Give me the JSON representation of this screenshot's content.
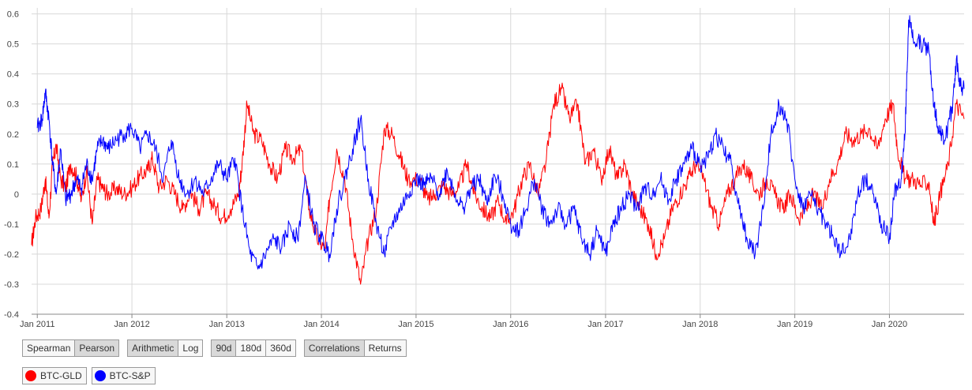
{
  "chart_data": {
    "type": "line",
    "title": "",
    "xlabel": "",
    "ylabel": "",
    "ylim": [
      -0.4,
      0.62
    ],
    "xlim": [
      "2010-12-10",
      "2020-10-15"
    ],
    "grid": true,
    "legend": "bottom-left",
    "y_ticks": [
      "-0.4",
      "-0.3",
      "-0.2",
      "-0.1",
      "0",
      "0.1",
      "0.2",
      "0.3",
      "0.4",
      "0.5",
      "0.6"
    ],
    "x_ticks": [
      "Jan 2011",
      "Jan 2012",
      "Jan 2013",
      "Jan 2014",
      "Jan 2015",
      "Jan 2016",
      "Jan 2017",
      "Jan 2018",
      "Jan 2019",
      "Jan 2020"
    ],
    "series": [
      {
        "name": "BTC-GLD",
        "color": "#ff0000",
        "points": [
          [
            "2010-12-10",
            -0.17
          ],
          [
            "2010-12-25",
            -0.08
          ],
          [
            "2011-01-15",
            -0.05
          ],
          [
            "2011-02-01",
            0.05
          ],
          [
            "2011-02-15",
            -0.08
          ],
          [
            "2011-03-01",
            0.1
          ],
          [
            "2011-03-15",
            0.16
          ],
          [
            "2011-04-01",
            0.05
          ],
          [
            "2011-04-20",
            0.02
          ],
          [
            "2011-05-10",
            0.1
          ],
          [
            "2011-06-01",
            0.06
          ],
          [
            "2011-06-20",
            -0.02
          ],
          [
            "2011-07-10",
            0.08
          ],
          [
            "2011-08-01",
            -0.1
          ],
          [
            "2011-08-20",
            0.05
          ],
          [
            "2011-09-10",
            0.02
          ],
          [
            "2011-10-01",
            0.0
          ],
          [
            "2011-11-01",
            0.02
          ],
          [
            "2011-12-01",
            0.0
          ],
          [
            "2012-01-01",
            0.02
          ],
          [
            "2012-02-01",
            0.06
          ],
          [
            "2012-03-01",
            0.08
          ],
          [
            "2012-03-20",
            0.12
          ],
          [
            "2012-04-15",
            0.02
          ],
          [
            "2012-05-15",
            0.05
          ],
          [
            "2012-06-15",
            0.0
          ],
          [
            "2012-07-15",
            -0.05
          ],
          [
            "2012-08-15",
            0.01
          ],
          [
            "2012-09-15",
            -0.05
          ],
          [
            "2012-10-15",
            0.0
          ],
          [
            "2012-11-15",
            -0.04
          ],
          [
            "2012-12-15",
            -0.08
          ],
          [
            "2013-01-15",
            -0.05
          ],
          [
            "2013-02-15",
            0.0
          ],
          [
            "2013-03-01",
            0.1
          ],
          [
            "2013-03-20",
            0.3
          ],
          [
            "2013-04-15",
            0.2
          ],
          [
            "2013-05-15",
            0.18
          ],
          [
            "2013-06-15",
            0.1
          ],
          [
            "2013-07-15",
            0.05
          ],
          [
            "2013-08-15",
            0.15
          ],
          [
            "2013-09-15",
            0.12
          ],
          [
            "2013-10-15",
            0.15
          ],
          [
            "2013-11-15",
            -0.05
          ],
          [
            "2013-12-15",
            -0.15
          ],
          [
            "2014-01-15",
            -0.18
          ],
          [
            "2014-02-01",
            -0.02
          ],
          [
            "2014-03-01",
            0.15
          ],
          [
            "2014-04-01",
            0.05
          ],
          [
            "2014-05-01",
            -0.15
          ],
          [
            "2014-06-01",
            -0.3
          ],
          [
            "2014-07-01",
            -0.15
          ],
          [
            "2014-08-01",
            -0.05
          ],
          [
            "2014-09-01",
            0.22
          ],
          [
            "2014-10-01",
            0.2
          ],
          [
            "2014-11-01",
            0.12
          ],
          [
            "2014-12-01",
            0.05
          ],
          [
            "2015-01-15",
            0.05
          ],
          [
            "2015-02-15",
            -0.02
          ],
          [
            "2015-03-15",
            0.0
          ],
          [
            "2015-04-15",
            0.03
          ],
          [
            "2015-05-15",
            0.0
          ],
          [
            "2015-06-15",
            0.02
          ],
          [
            "2015-07-15",
            0.1
          ],
          [
            "2015-08-15",
            0.0
          ],
          [
            "2015-09-15",
            -0.05
          ],
          [
            "2015-10-15",
            -0.08
          ],
          [
            "2015-11-15",
            -0.02
          ],
          [
            "2015-12-15",
            -0.1
          ],
          [
            "2016-01-15",
            -0.05
          ],
          [
            "2016-02-15",
            0.05
          ],
          [
            "2016-03-15",
            0.1
          ],
          [
            "2016-04-15",
            0.0
          ],
          [
            "2016-05-15",
            0.1
          ],
          [
            "2016-06-15",
            0.3
          ],
          [
            "2016-07-15",
            0.35
          ],
          [
            "2016-08-15",
            0.25
          ],
          [
            "2016-09-15",
            0.3
          ],
          [
            "2016-10-15",
            0.1
          ],
          [
            "2016-11-15",
            0.15
          ],
          [
            "2016-12-15",
            0.05
          ],
          [
            "2017-01-15",
            0.15
          ],
          [
            "2017-02-15",
            0.05
          ],
          [
            "2017-03-15",
            0.1
          ],
          [
            "2017-04-15",
            0.0
          ],
          [
            "2017-05-15",
            -0.05
          ],
          [
            "2017-06-15",
            -0.1
          ],
          [
            "2017-07-15",
            -0.2
          ],
          [
            "2017-08-15",
            -0.15
          ],
          [
            "2017-09-15",
            -0.05
          ],
          [
            "2017-10-15",
            0.0
          ],
          [
            "2017-11-15",
            0.05
          ],
          [
            "2017-12-15",
            0.1
          ],
          [
            "2018-01-15",
            0.05
          ],
          [
            "2018-02-15",
            -0.05
          ],
          [
            "2018-03-15",
            -0.1
          ],
          [
            "2018-04-15",
            0.0
          ],
          [
            "2018-05-15",
            0.05
          ],
          [
            "2018-06-15",
            0.1
          ],
          [
            "2018-07-15",
            0.05
          ],
          [
            "2018-08-15",
            0.0
          ],
          [
            "2018-09-15",
            0.05
          ],
          [
            "2018-10-15",
            0.0
          ],
          [
            "2018-11-15",
            -0.05
          ],
          [
            "2018-12-15",
            0.0
          ],
          [
            "2019-01-15",
            -0.08
          ],
          [
            "2019-02-15",
            -0.05
          ],
          [
            "2019-03-15",
            0.0
          ],
          [
            "2019-04-15",
            -0.05
          ],
          [
            "2019-05-15",
            0.05
          ],
          [
            "2019-06-15",
            0.1
          ],
          [
            "2019-07-15",
            0.2
          ],
          [
            "2019-08-15",
            0.18
          ],
          [
            "2019-09-15",
            0.2
          ],
          [
            "2019-10-15",
            0.22
          ],
          [
            "2019-11-15",
            0.15
          ],
          [
            "2019-12-15",
            0.25
          ],
          [
            "2020-01-15",
            0.3
          ],
          [
            "2020-02-01",
            0.15
          ],
          [
            "2020-03-01",
            0.05
          ],
          [
            "2020-04-01",
            0.05
          ],
          [
            "2020-05-01",
            0.03
          ],
          [
            "2020-06-01",
            0.04
          ],
          [
            "2020-06-20",
            -0.1
          ],
          [
            "2020-07-15",
            0.0
          ],
          [
            "2020-08-15",
            0.1
          ],
          [
            "2020-09-15",
            0.3
          ],
          [
            "2020-10-15",
            0.25
          ]
        ]
      },
      {
        "name": "BTC-S&P",
        "color": "#0000ff",
        "points": [
          [
            "2011-01-01",
            0.22
          ],
          [
            "2011-01-20",
            0.25
          ],
          [
            "2011-02-01",
            0.34
          ],
          [
            "2011-02-15",
            0.25
          ],
          [
            "2011-03-01",
            0.1
          ],
          [
            "2011-03-15",
            0.0
          ],
          [
            "2011-04-01",
            0.15
          ],
          [
            "2011-04-20",
            -0.02
          ],
          [
            "2011-05-10",
            0.0
          ],
          [
            "2011-06-01",
            0.05
          ],
          [
            "2011-06-20",
            0.02
          ],
          [
            "2011-07-10",
            0.1
          ],
          [
            "2011-08-01",
            0.05
          ],
          [
            "2011-08-20",
            0.15
          ],
          [
            "2011-09-10",
            0.18
          ],
          [
            "2011-10-01",
            0.15
          ],
          [
            "2011-11-01",
            0.18
          ],
          [
            "2011-12-01",
            0.2
          ],
          [
            "2012-01-01",
            0.22
          ],
          [
            "2012-02-01",
            0.15
          ],
          [
            "2012-03-01",
            0.2
          ],
          [
            "2012-04-01",
            0.15
          ],
          [
            "2012-05-01",
            0.05
          ],
          [
            "2012-06-01",
            0.18
          ],
          [
            "2012-07-01",
            0.05
          ],
          [
            "2012-08-01",
            0.0
          ],
          [
            "2012-09-01",
            0.05
          ],
          [
            "2012-10-01",
            0.0
          ],
          [
            "2012-11-01",
            0.05
          ],
          [
            "2012-12-01",
            0.1
          ],
          [
            "2013-01-01",
            0.05
          ],
          [
            "2013-02-01",
            0.12
          ],
          [
            "2013-03-01",
            -0.05
          ],
          [
            "2013-04-01",
            -0.2
          ],
          [
            "2013-05-01",
            -0.25
          ],
          [
            "2013-06-01",
            -0.2
          ],
          [
            "2013-07-01",
            -0.15
          ],
          [
            "2013-08-01",
            -0.18
          ],
          [
            "2013-09-01",
            -0.1
          ],
          [
            "2013-10-01",
            -0.15
          ],
          [
            "2013-11-01",
            0.05
          ],
          [
            "2013-12-01",
            -0.1
          ],
          [
            "2014-01-01",
            -0.15
          ],
          [
            "2014-02-01",
            -0.2
          ],
          [
            "2014-03-01",
            -0.05
          ],
          [
            "2014-04-01",
            0.05
          ],
          [
            "2014-05-01",
            0.15
          ],
          [
            "2014-06-01",
            0.25
          ],
          [
            "2014-07-01",
            0.05
          ],
          [
            "2014-08-01",
            -0.1
          ],
          [
            "2014-09-01",
            -0.2
          ],
          [
            "2014-10-01",
            -0.1
          ],
          [
            "2014-11-01",
            -0.05
          ],
          [
            "2014-12-01",
            0.0
          ],
          [
            "2015-01-01",
            0.05
          ],
          [
            "2015-02-01",
            0.03
          ],
          [
            "2015-03-01",
            0.05
          ],
          [
            "2015-04-01",
            0.0
          ],
          [
            "2015-05-01",
            0.08
          ],
          [
            "2015-06-01",
            0.0
          ],
          [
            "2015-07-01",
            -0.05
          ],
          [
            "2015-08-01",
            0.02
          ],
          [
            "2015-09-01",
            0.05
          ],
          [
            "2015-10-01",
            -0.03
          ],
          [
            "2015-11-01",
            0.06
          ],
          [
            "2015-12-01",
            0.0
          ],
          [
            "2016-01-01",
            -0.1
          ],
          [
            "2016-02-01",
            -0.12
          ],
          [
            "2016-03-01",
            -0.05
          ],
          [
            "2016-04-01",
            0.05
          ],
          [
            "2016-05-01",
            -0.05
          ],
          [
            "2016-06-01",
            -0.1
          ],
          [
            "2016-07-01",
            -0.05
          ],
          [
            "2016-08-01",
            -0.1
          ],
          [
            "2016-09-01",
            -0.05
          ],
          [
            "2016-10-01",
            -0.15
          ],
          [
            "2016-11-01",
            -0.2
          ],
          [
            "2016-12-01",
            -0.12
          ],
          [
            "2017-01-01",
            -0.2
          ],
          [
            "2017-02-01",
            -0.1
          ],
          [
            "2017-03-01",
            -0.05
          ],
          [
            "2017-04-01",
            0.0
          ],
          [
            "2017-05-01",
            -0.05
          ],
          [
            "2017-06-01",
            0.02
          ],
          [
            "2017-07-01",
            0.0
          ],
          [
            "2017-08-01",
            0.05
          ],
          [
            "2017-09-01",
            -0.02
          ],
          [
            "2017-10-01",
            0.05
          ],
          [
            "2017-11-01",
            0.1
          ],
          [
            "2017-12-01",
            0.15
          ],
          [
            "2018-01-01",
            0.1
          ],
          [
            "2018-02-01",
            0.12
          ],
          [
            "2018-03-01",
            0.2
          ],
          [
            "2018-04-01",
            0.15
          ],
          [
            "2018-05-01",
            0.1
          ],
          [
            "2018-06-01",
            -0.05
          ],
          [
            "2018-07-01",
            -0.15
          ],
          [
            "2018-08-01",
            -0.2
          ],
          [
            "2018-09-01",
            -0.05
          ],
          [
            "2018-10-01",
            0.2
          ],
          [
            "2018-11-01",
            0.3
          ],
          [
            "2018-12-01",
            0.25
          ],
          [
            "2019-01-01",
            0.05
          ],
          [
            "2019-02-01",
            -0.05
          ],
          [
            "2019-03-01",
            0.0
          ],
          [
            "2019-04-01",
            -0.05
          ],
          [
            "2019-05-01",
            -0.1
          ],
          [
            "2019-06-01",
            -0.15
          ],
          [
            "2019-07-01",
            -0.2
          ],
          [
            "2019-08-01",
            -0.15
          ],
          [
            "2019-09-01",
            0.0
          ],
          [
            "2019-10-01",
            0.05
          ],
          [
            "2019-11-01",
            0.0
          ],
          [
            "2019-12-01",
            -0.1
          ],
          [
            "2020-01-01",
            -0.15
          ],
          [
            "2020-01-20",
            0.0
          ],
          [
            "2020-02-15",
            0.05
          ],
          [
            "2020-03-01",
            0.2
          ],
          [
            "2020-03-15",
            0.58
          ],
          [
            "2020-04-01",
            0.52
          ],
          [
            "2020-05-01",
            0.5
          ],
          [
            "2020-06-01",
            0.48
          ],
          [
            "2020-06-20",
            0.3
          ],
          [
            "2020-07-01",
            0.25
          ],
          [
            "2020-07-15",
            0.2
          ],
          [
            "2020-08-01",
            0.18
          ],
          [
            "2020-08-20",
            0.25
          ],
          [
            "2020-09-01",
            0.3
          ],
          [
            "2020-09-15",
            0.45
          ],
          [
            "2020-10-01",
            0.36
          ],
          [
            "2020-10-15",
            0.35
          ]
        ]
      }
    ]
  },
  "controls": {
    "method": {
      "spearman": "Spearman",
      "pearson": "Pearson"
    },
    "scale": {
      "arithmetic": "Arithmetic",
      "log": "Log"
    },
    "window": {
      "d90": "90d",
      "d180": "180d",
      "d360": "360d"
    },
    "view": {
      "correlations": "Correlations",
      "returns": "Returns"
    }
  },
  "legend": {
    "gld": {
      "label": "BTC-GLD",
      "color": "#ff0000"
    },
    "sp": {
      "label": "BTC-S&P",
      "color": "#0000ff"
    }
  }
}
